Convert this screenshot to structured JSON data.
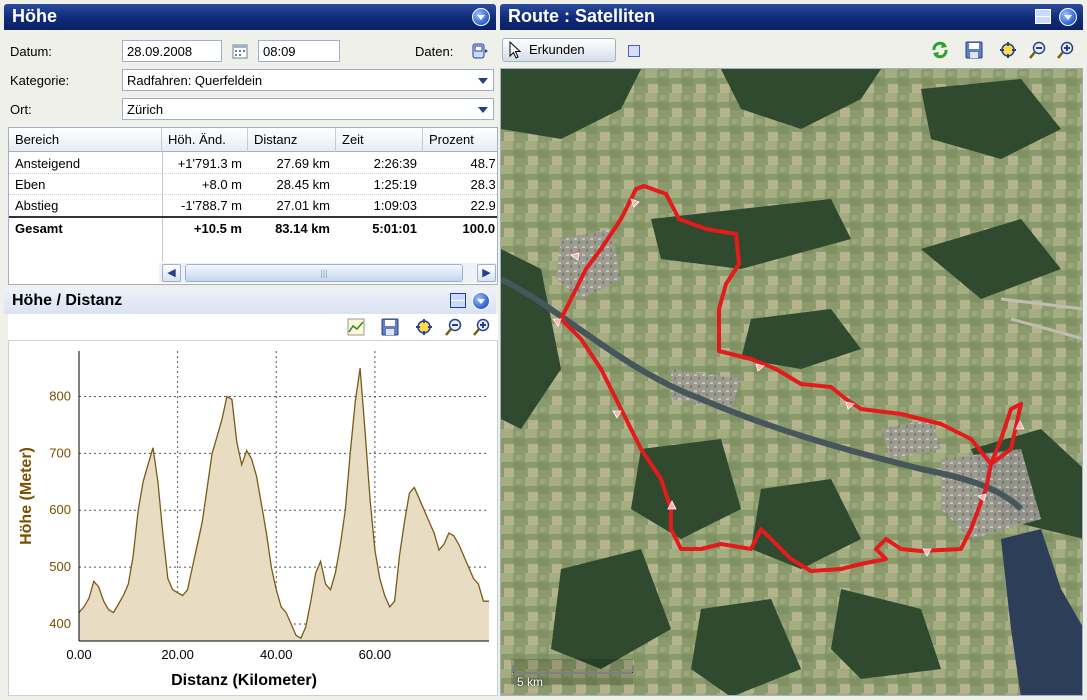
{
  "left_panel": {
    "title": "Höhe",
    "datum_label": "Datum:",
    "datum_value": "28.09.2008",
    "time_value": "08:09",
    "daten_label": "Daten:",
    "kategorie_label": "Kategorie:",
    "kategorie_value": "Radfahren: Querfeldein",
    "ort_label": "Ort:",
    "ort_value": "Zürich"
  },
  "table": {
    "columns": [
      "Bereich",
      "Höh. Änd.",
      "Distanz",
      "Zeit",
      "Prozent"
    ],
    "rows": [
      [
        "Ansteigend",
        "+1'791.3 m",
        "27.69 km",
        "2:26:39",
        "48.7 :"
      ],
      [
        "Eben",
        "+8.0 m",
        "28.45 km",
        "1:25:19",
        "28.3 :"
      ],
      [
        "Abstieg",
        "-1'788.7 m",
        "27.01 km",
        "1:09:03",
        "22.9 :"
      ],
      [
        "Gesamt",
        "+10.5 m",
        "83.14 km",
        "5:01:01",
        "100.0 :"
      ]
    ]
  },
  "chart_panel": {
    "title": "Höhe / Distanz"
  },
  "chart_data": {
    "type": "area",
    "title": "",
    "xlabel": "Distanz (Kilometer)",
    "ylabel": "Höhe (Meter)",
    "xlim": [
      0,
      83.14
    ],
    "ylim": [
      370,
      880
    ],
    "x_ticks": [
      "0.00",
      "20.00",
      "40.00",
      "60.00"
    ],
    "x_tick_values": [
      0,
      20,
      40,
      60
    ],
    "y_ticks": [
      "400",
      "500",
      "600",
      "700",
      "800"
    ],
    "y_tick_values": [
      400,
      500,
      600,
      700,
      800
    ],
    "grid": true,
    "fill_color": "#e8dcc3",
    "line_color": "#7a5a1a",
    "x": [
      0,
      1,
      2,
      3,
      4,
      5,
      6,
      7,
      8,
      9,
      10,
      11,
      12,
      13,
      14,
      15,
      16,
      17,
      18,
      19,
      20,
      21,
      22,
      23,
      24,
      25,
      26,
      27,
      28,
      29,
      30,
      31,
      32,
      33,
      34,
      35,
      36,
      37,
      38,
      39,
      40,
      41,
      42,
      43,
      44,
      45,
      46,
      47,
      48,
      49,
      50,
      51,
      52,
      53,
      54,
      55,
      56,
      57,
      58,
      59,
      60,
      61,
      62,
      63,
      64,
      65,
      66,
      67,
      68,
      69,
      70,
      71,
      72,
      73,
      74,
      75,
      76,
      77,
      78,
      79,
      80,
      81,
      82,
      83.14
    ],
    "y": [
      420,
      430,
      445,
      475,
      465,
      440,
      425,
      420,
      435,
      450,
      470,
      520,
      600,
      650,
      680,
      710,
      650,
      560,
      480,
      460,
      455,
      450,
      460,
      500,
      540,
      580,
      640,
      700,
      730,
      760,
      800,
      795,
      720,
      680,
      705,
      690,
      660,
      610,
      560,
      500,
      460,
      430,
      420,
      400,
      380,
      375,
      395,
      440,
      490,
      510,
      470,
      460,
      490,
      540,
      600,
      700,
      790,
      850,
      740,
      620,
      530,
      480,
      450,
      430,
      440,
      520,
      580,
      630,
      640,
      620,
      600,
      580,
      560,
      530,
      540,
      560,
      555,
      540,
      520,
      500,
      480,
      470,
      440,
      440
    ]
  },
  "right_panel": {
    "title": "Route : Satelliten",
    "erkunden_label": "Erkunden",
    "scale_label": "5 km"
  },
  "colors": {
    "header": "#0f2a78",
    "route": "#e31b1b",
    "accent": "#2a5fd0"
  }
}
